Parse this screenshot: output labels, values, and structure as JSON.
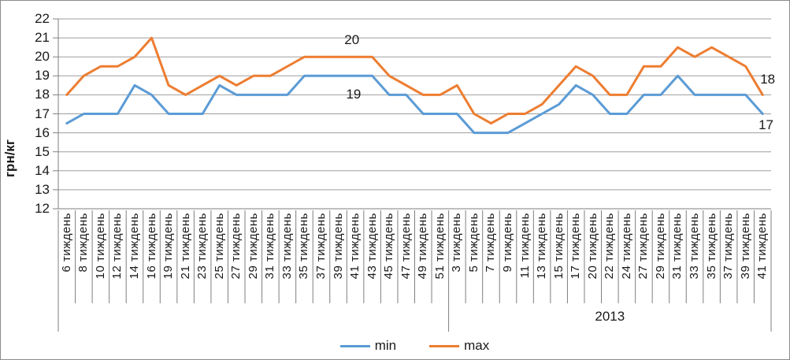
{
  "chart_data": {
    "type": "line",
    "title": "",
    "xlabel": "",
    "ylabel": "грн/кг",
    "ylim": [
      12,
      22
    ],
    "ytick_step": 1,
    "grid": true,
    "legend_position": "bottom",
    "categories": [
      "6 тиждень",
      "8 тиждень",
      "10 тиждень",
      "12 тиждень",
      "14 тиждень",
      "16 тиждень",
      "19 тиждень",
      "21 тиждень",
      "23 тиждень",
      "25 тиждень",
      "27 тиждень",
      "29 тиждень",
      "31 тиждень",
      "33 тиждень",
      "35 тиждень",
      "37 тиждень",
      "39 тиждень",
      "41 тиждень",
      "43 тиждень",
      "45 тиждень",
      "47 тиждень",
      "49 тиждень",
      "51 тиждень",
      "3 тиждень",
      "5 тиждень",
      "7 тиждень",
      "9 тиждень",
      "11 тиждень",
      "13 тиждень",
      "15 тиждень",
      "17 тиждень",
      "20 тиждень",
      "22 тиждень",
      "24 тиждень",
      "27 тиждень",
      "29 тиждень",
      "31 тиждень",
      "33 тиждень",
      "35 тиждень",
      "37 тиждень",
      "39 тиждень",
      "41 тиждень"
    ],
    "year_groups": [
      {
        "label": "",
        "start": 0,
        "end": 22
      },
      {
        "label": "2013",
        "start": 23,
        "end": 41
      }
    ],
    "series": [
      {
        "name": "min",
        "color": "#5B9BD5",
        "values": [
          16.5,
          17,
          17,
          17,
          18.5,
          18,
          17,
          17,
          17,
          18.5,
          18,
          18,
          18,
          18,
          19,
          19,
          19,
          19,
          19,
          18,
          18,
          17,
          17,
          17,
          16,
          16,
          16,
          16.5,
          17,
          17.5,
          18.5,
          18,
          17,
          17,
          18,
          18,
          19,
          18,
          18,
          18,
          18,
          17
        ]
      },
      {
        "name": "max",
        "color": "#ED7D31",
        "values": [
          18,
          19,
          19.5,
          19.5,
          20,
          21,
          18.5,
          18,
          18.5,
          19,
          18.5,
          19,
          19,
          19.5,
          20,
          20,
          20,
          20,
          20,
          19,
          18.5,
          18,
          18,
          18.5,
          17,
          16.5,
          17,
          17,
          17.5,
          18.5,
          19.5,
          19,
          18,
          18,
          19.5,
          19.5,
          20.5,
          20,
          20.5,
          20,
          19.5,
          18
        ]
      }
    ],
    "annotations": [
      {
        "text": "20",
        "x_index": 16.8,
        "value": 20.9
      },
      {
        "text": "19",
        "x_index": 16.9,
        "value": 18.0
      },
      {
        "text": "18",
        "x_index": 41.3,
        "value": 18.8
      },
      {
        "text": "17",
        "x_index": 41.2,
        "value": 16.4
      }
    ]
  },
  "colors": {
    "grid": "#9e9e9e",
    "axis": "#7f7f7f",
    "text": "#1a1a1a"
  }
}
